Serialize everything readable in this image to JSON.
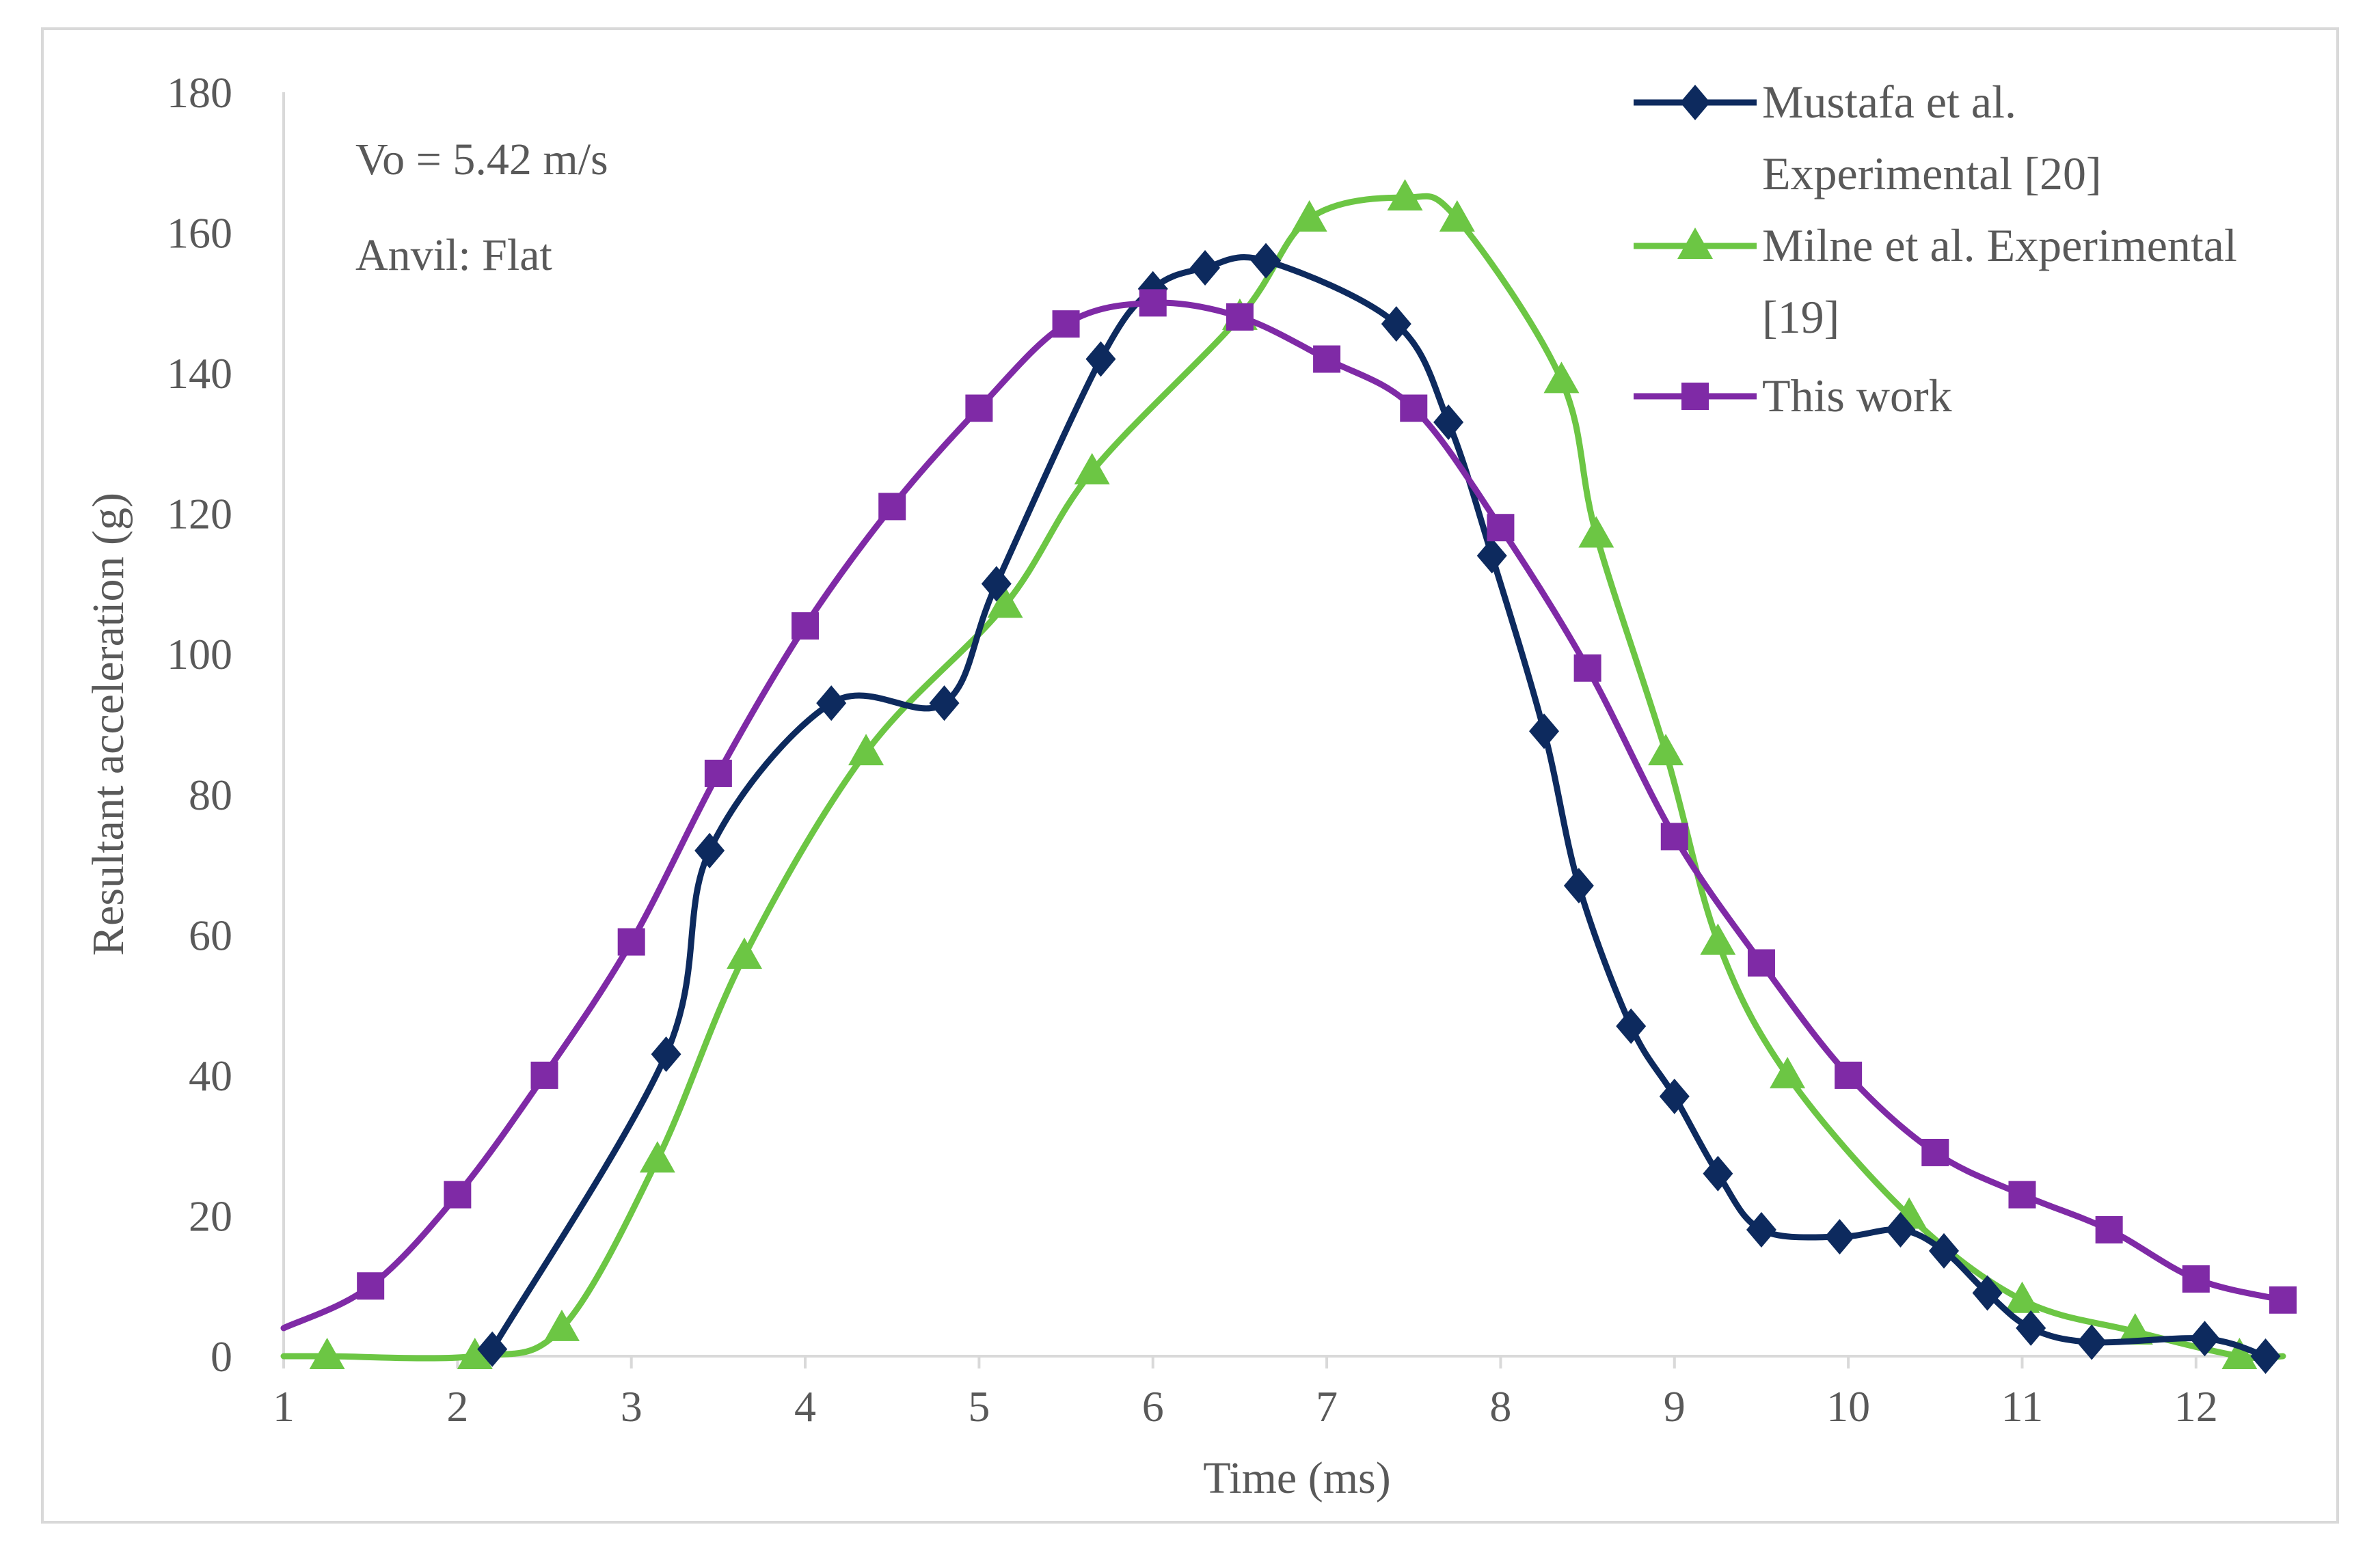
{
  "chart_data": {
    "type": "line",
    "title": "",
    "xlabel": "Time (ms)",
    "ylabel": "Resultant acceleration (g)",
    "xlim": [
      1,
      12.5
    ],
    "ylim": [
      0,
      180
    ],
    "xticks": [
      1,
      2,
      3,
      4,
      5,
      6,
      7,
      8,
      9,
      10,
      11,
      12
    ],
    "yticks": [
      0,
      20,
      40,
      60,
      80,
      100,
      120,
      140,
      160,
      180
    ],
    "grid": false,
    "legend_position": "top-right",
    "annotations": [
      "Vo = 5.42 m/s",
      "Anvil: Flat"
    ],
    "series": [
      {
        "name": "Mustafa et al. Experimental [20]",
        "legend_lines": [
          "Mustafa et al.",
          "Experimental [20]"
        ],
        "color": "#0d2a5e",
        "marker": "diamond",
        "x": [
          2.2,
          3.2,
          3.45,
          4.15,
          4.8,
          5.1,
          5.7,
          6.0,
          6.3,
          6.65,
          7.4,
          7.7,
          7.95,
          8.25,
          8.45,
          8.75,
          9.0,
          9.25,
          9.5,
          9.95,
          10.3,
          10.55,
          10.8,
          11.05,
          11.4,
          12.05,
          12.4
        ],
        "y": [
          1,
          43,
          72,
          93,
          93,
          110,
          142,
          152,
          155,
          156,
          147,
          133,
          114,
          89,
          67,
          47,
          37,
          26,
          18,
          17,
          18,
          15,
          9,
          4,
          2,
          2.5,
          0
        ]
      },
      {
        "name": "Milne et al. Experimental [19]",
        "legend_lines": [
          "Milne et al. Experimental",
          "[19]"
        ],
        "color": "#6cc644",
        "marker": "triangle",
        "x": [
          1.25,
          2.1,
          2.6,
          3.15,
          3.65,
          4.35,
          5.15,
          5.65,
          6.5,
          6.9,
          7.45,
          7.75,
          8.35,
          8.55,
          8.95,
          9.25,
          9.65,
          10.35,
          11.0,
          11.65,
          12.25
        ],
        "y": [
          0,
          0,
          4,
          28,
          57,
          86,
          107,
          126,
          148,
          162,
          165,
          162,
          139,
          117,
          86,
          59,
          40,
          20,
          8,
          3.5,
          0
        ]
      },
      {
        "name": "This work",
        "legend_lines": [
          "This work"
        ],
        "color": "#7f2aa6",
        "marker": "square",
        "x": [
          1.5,
          2.0,
          2.5,
          3.0,
          3.5,
          4.0,
          4.5,
          5.0,
          5.5,
          6.0,
          6.5,
          7.0,
          7.5,
          8.0,
          8.5,
          9.0,
          9.5,
          10.0,
          10.5,
          11.0,
          11.5,
          12.0,
          12.5
        ],
        "y": [
          10,
          23,
          40,
          59,
          83,
          104,
          121,
          135,
          147,
          150,
          148,
          142,
          135,
          118,
          98,
          74,
          56,
          40,
          29,
          23,
          18,
          11,
          8
        ]
      }
    ]
  }
}
